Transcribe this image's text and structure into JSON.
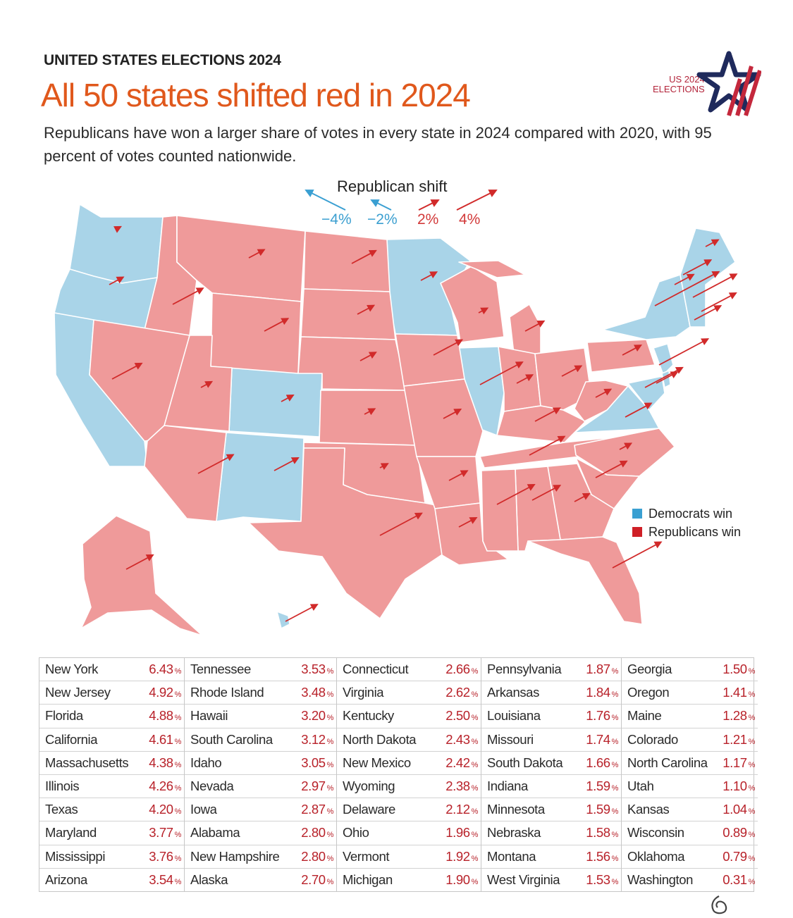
{
  "header": {
    "kicker": "UNITED STATES ELECTIONS 2024",
    "title": "All 50 states shifted red in 2024",
    "subtitle": "Republicans have won a larger share of votes in every state in 2024 compared with 2020, with 95 percent of votes counted nationwide."
  },
  "logo": {
    "line1": "US 2024",
    "line2": "ELECTIONS"
  },
  "shift_key": {
    "title": "Republican shift",
    "labels": [
      "−4%",
      "−2%",
      "2%",
      "4%"
    ]
  },
  "legend": {
    "dem_label": "Democrats win",
    "rep_label": "Republicans win",
    "dem_color": "#a9d4e8",
    "rep_color": "#ef9a9a",
    "dem_swatch": "#3aa0d2",
    "rep_swatch": "#cf1f26",
    "arrow_red": "#d12a2a",
    "arrow_blue": "#3a9fd2"
  },
  "percent_unit": "%",
  "shifts": [
    {
      "state": "New York",
      "value": "6.43"
    },
    {
      "state": "New Jersey",
      "value": "4.92"
    },
    {
      "state": "Florida",
      "value": "4.88"
    },
    {
      "state": "California",
      "value": "4.61"
    },
    {
      "state": "Massachusetts",
      "value": "4.38"
    },
    {
      "state": "Illinois",
      "value": "4.26"
    },
    {
      "state": "Texas",
      "value": "4.20"
    },
    {
      "state": "Maryland",
      "value": "3.77"
    },
    {
      "state": "Mississippi",
      "value": "3.76"
    },
    {
      "state": "Arizona",
      "value": "3.54"
    },
    {
      "state": "Tennessee",
      "value": "3.53"
    },
    {
      "state": "Rhode Island",
      "value": "3.48"
    },
    {
      "state": "Hawaii",
      "value": "3.20"
    },
    {
      "state": "South Carolina",
      "value": "3.12"
    },
    {
      "state": "Idaho",
      "value": "3.05"
    },
    {
      "state": "Nevada",
      "value": "2.97"
    },
    {
      "state": "Iowa",
      "value": "2.87"
    },
    {
      "state": "Alabama",
      "value": "2.80"
    },
    {
      "state": "New Hampshire",
      "value": "2.80"
    },
    {
      "state": "Alaska",
      "value": "2.70"
    },
    {
      "state": "Connecticut",
      "value": "2.66"
    },
    {
      "state": "Virginia",
      "value": "2.62"
    },
    {
      "state": "Kentucky",
      "value": "2.50"
    },
    {
      "state": "North Dakota",
      "value": "2.43"
    },
    {
      "state": "New Mexico",
      "value": "2.42"
    },
    {
      "state": "Wyoming",
      "value": "2.38"
    },
    {
      "state": "Delaware",
      "value": "2.12"
    },
    {
      "state": "Ohio",
      "value": "1.96"
    },
    {
      "state": "Vermont",
      "value": "1.92"
    },
    {
      "state": "Michigan",
      "value": "1.90"
    },
    {
      "state": "Pennsylvania",
      "value": "1.87"
    },
    {
      "state": "Arkansas",
      "value": "1.84"
    },
    {
      "state": "Louisiana",
      "value": "1.76"
    },
    {
      "state": "Missouri",
      "value": "1.74"
    },
    {
      "state": "South Dakota",
      "value": "1.66"
    },
    {
      "state": "Indiana",
      "value": "1.59"
    },
    {
      "state": "Minnesota",
      "value": "1.59"
    },
    {
      "state": "Nebraska",
      "value": "1.58"
    },
    {
      "state": "Montana",
      "value": "1.56"
    },
    {
      "state": "West Virginia",
      "value": "1.53"
    },
    {
      "state": "Georgia",
      "value": "1.50"
    },
    {
      "state": "Oregon",
      "value": "1.41"
    },
    {
      "state": "Maine",
      "value": "1.28"
    },
    {
      "state": "Colorado",
      "value": "1.21"
    },
    {
      "state": "North Carolina",
      "value": "1.17"
    },
    {
      "state": "Utah",
      "value": "1.10"
    },
    {
      "state": "Kansas",
      "value": "1.04"
    },
    {
      "state": "Wisconsin",
      "value": "0.89"
    },
    {
      "state": "Oklahoma",
      "value": "0.79"
    },
    {
      "state": "Washington",
      "value": "0.31"
    }
  ]
}
